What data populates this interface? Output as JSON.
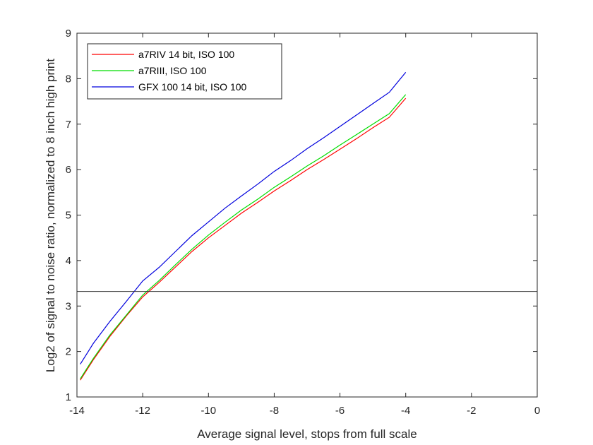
{
  "chart_data": {
    "type": "line",
    "xlabel": "Average signal level, stops from full scale",
    "ylabel": "Log2 of signal to noise ratio, normalized to 8 inch high print",
    "xlim": [
      -14,
      0
    ],
    "ylim": [
      1,
      9
    ],
    "xticks": [
      -14,
      -12,
      -10,
      -8,
      -6,
      -4,
      -2,
      0
    ],
    "yticks": [
      1,
      2,
      3,
      4,
      5,
      6,
      7,
      8,
      9
    ],
    "xtick_labels": [
      "-14",
      "-12",
      "-10",
      "-8",
      "-6",
      "-4",
      "-2",
      "0"
    ],
    "ytick_labels": [
      "1",
      "2",
      "3",
      "4",
      "5",
      "6",
      "7",
      "8",
      "9"
    ],
    "grid": false,
    "legend_position": "top-left",
    "reference_line": {
      "y": 3.32,
      "color": "#333333"
    },
    "series": [
      {
        "name": "a7RIV 14 bit, ISO 100",
        "color": "#ff0000",
        "x": [
          -13.9,
          -13.5,
          -13.0,
          -12.5,
          -12.0,
          -11.5,
          -11.0,
          -10.5,
          -10.0,
          -9.5,
          -9.0,
          -8.5,
          -8.0,
          -7.5,
          -7.0,
          -6.5,
          -6.0,
          -5.5,
          -5.0,
          -4.5,
          -4.0
        ],
        "y": [
          1.37,
          1.82,
          2.33,
          2.78,
          3.2,
          3.52,
          3.86,
          4.2,
          4.5,
          4.77,
          5.04,
          5.28,
          5.53,
          5.76,
          6.0,
          6.22,
          6.45,
          6.68,
          6.92,
          7.15,
          7.57
        ]
      },
      {
        "name": "a7RIII, ISO 100",
        "color": "#00dd00",
        "x": [
          -13.9,
          -13.5,
          -13.0,
          -12.5,
          -12.0,
          -11.5,
          -11.0,
          -10.5,
          -10.0,
          -9.5,
          -9.0,
          -8.5,
          -8.0,
          -7.5,
          -7.0,
          -6.5,
          -6.0,
          -5.5,
          -5.0,
          -4.5,
          -4.0
        ],
        "y": [
          1.4,
          1.85,
          2.36,
          2.8,
          3.24,
          3.56,
          3.91,
          4.25,
          4.56,
          4.84,
          5.11,
          5.35,
          5.61,
          5.84,
          6.08,
          6.3,
          6.54,
          6.77,
          7.0,
          7.23,
          7.65
        ]
      },
      {
        "name": "GFX 100 14 bit, ISO 100",
        "color": "#0000dd",
        "x": [
          -13.9,
          -13.5,
          -13.0,
          -12.5,
          -12.0,
          -11.5,
          -11.0,
          -10.5,
          -10.0,
          -9.5,
          -9.0,
          -8.5,
          -8.0,
          -7.5,
          -7.0,
          -6.5,
          -6.0,
          -5.5,
          -5.0,
          -4.5,
          -4.0
        ],
        "y": [
          1.72,
          2.18,
          2.66,
          3.1,
          3.55,
          3.85,
          4.2,
          4.55,
          4.85,
          5.15,
          5.42,
          5.68,
          5.96,
          6.2,
          6.46,
          6.7,
          6.95,
          7.2,
          7.45,
          7.7,
          8.14
        ]
      }
    ]
  }
}
